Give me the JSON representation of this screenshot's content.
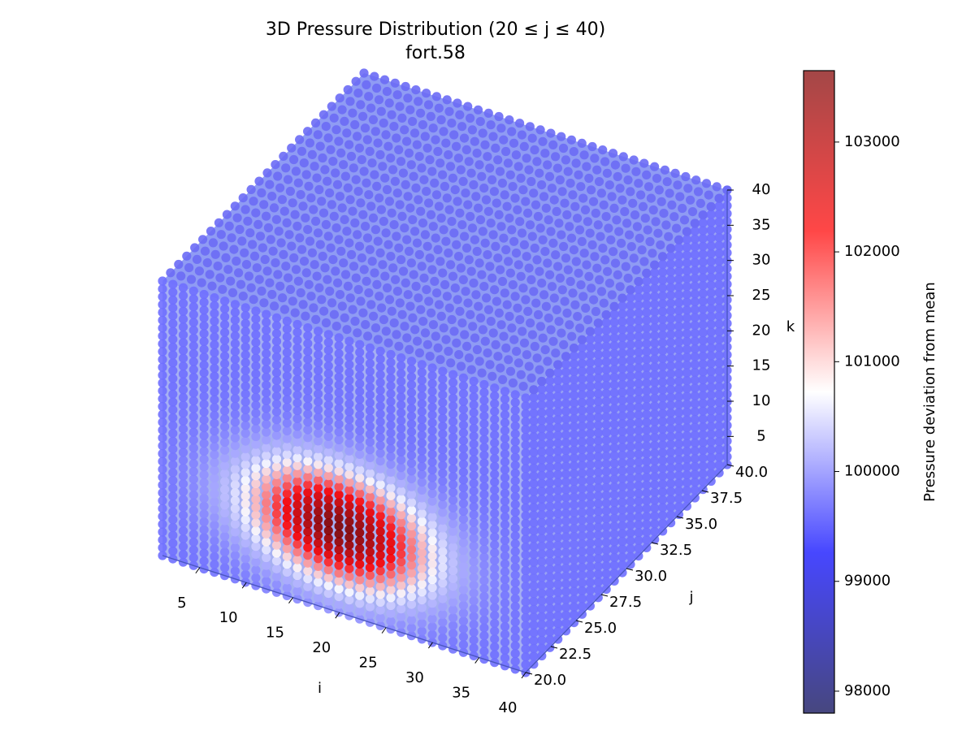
{
  "title": "3D Pressure Distribution (20 ≤ j ≤ 40)",
  "subtitle": "fort.58",
  "chart_data": {
    "type": "scatter",
    "projection": "3d",
    "title": "3D Pressure Distribution (20 ≤ j ≤ 40)",
    "subtitle": "fort.58",
    "x_axis": {
      "label": "i",
      "range": [
        1,
        40
      ],
      "ticks": [
        5,
        10,
        15,
        20,
        25,
        30,
        35,
        40
      ],
      "tick_labels": [
        "5",
        "10",
        "15",
        "20",
        "25",
        "30",
        "35",
        "40"
      ]
    },
    "y_axis": {
      "label": "j",
      "range": [
        20,
        40
      ],
      "ticks": [
        20,
        22.5,
        25,
        27.5,
        30,
        32.5,
        35,
        37.5,
        40
      ],
      "tick_labels": [
        "20.0",
        "22.5",
        "25.0",
        "27.5",
        "30.0",
        "32.5",
        "35.0",
        "37.5",
        "40.0"
      ]
    },
    "z_axis": {
      "label": "k",
      "range": [
        1,
        40
      ],
      "ticks": [
        5,
        10,
        15,
        20,
        25,
        30,
        35,
        40
      ],
      "tick_labels": [
        "5",
        "10",
        "15",
        "20",
        "25",
        "30",
        "35",
        "40"
      ]
    },
    "colorbar": {
      "label": "Pressure deviation from mean",
      "colormap": "seismic",
      "range": [
        97800,
        103650
      ],
      "ticks": [
        98000,
        99000,
        100000,
        101000,
        102000,
        103000
      ],
      "tick_labels": [
        "98000",
        "99000",
        "100000",
        "101000",
        "102000",
        "103000"
      ]
    },
    "field": {
      "background_pressure": 99900,
      "peak_pressure": 103650,
      "peak_center": {
        "i": 20,
        "j": 20,
        "k": 13
      },
      "peak_spread": {
        "i": 8.5,
        "j": 8,
        "k": 7
      }
    },
    "grid": false
  }
}
